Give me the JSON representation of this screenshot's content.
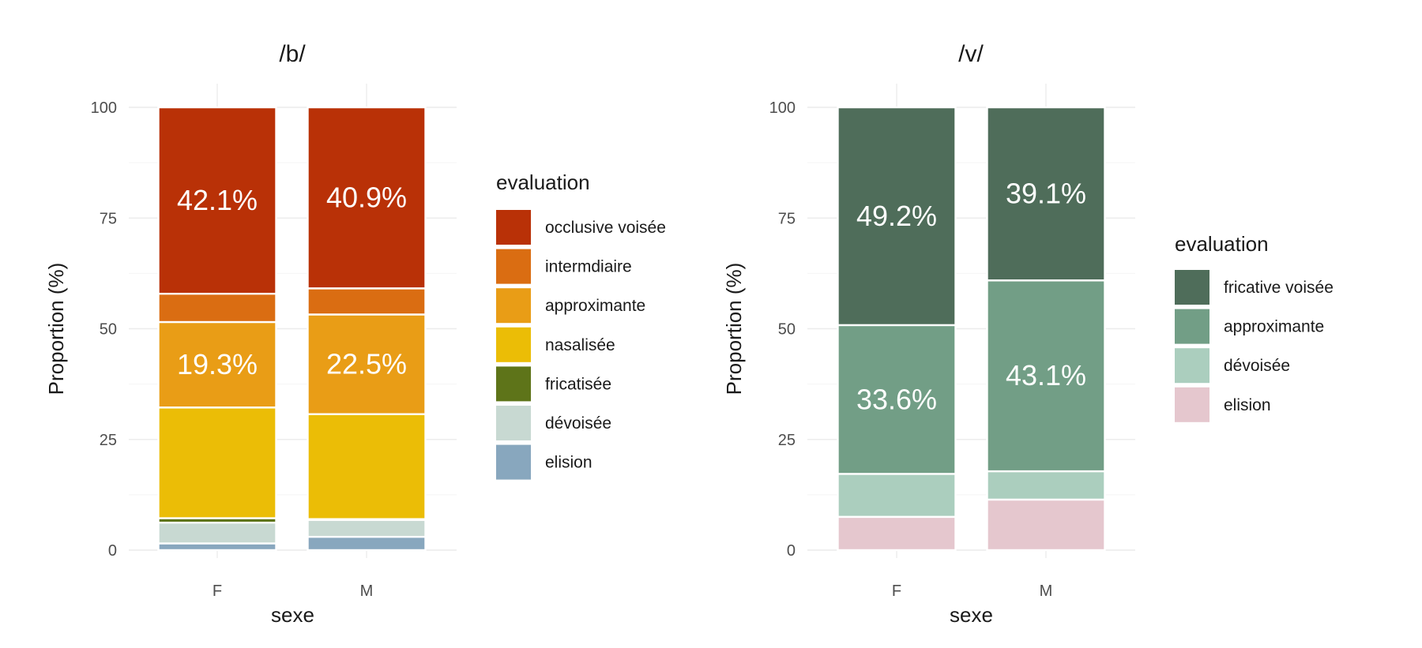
{
  "chart_data": [
    {
      "type": "bar",
      "stacked": true,
      "title": "/b/",
      "xlabel": "sexe",
      "ylabel": "Proportion (%)",
      "ylim": [
        0,
        100
      ],
      "yticks": [
        "0",
        "25",
        "50",
        "75",
        "100"
      ],
      "categories": [
        "F",
        "M"
      ],
      "legend_title": "evaluation",
      "legend_position": "right",
      "series": [
        {
          "name": "occlusive voisée",
          "color": "#B93107",
          "values": [
            42.1,
            40.9
          ]
        },
        {
          "name": "intermdiaire",
          "color": "#DA6D12",
          "values": [
            6.4,
            5.9
          ]
        },
        {
          "name": "approximante",
          "color": "#E99D16",
          "values": [
            19.3,
            22.5
          ]
        },
        {
          "name": "nasalisée",
          "color": "#EBBD06",
          "values": [
            25.0,
            23.7
          ]
        },
        {
          "name": "fricatisée",
          "color": "#5E7419",
          "values": [
            1.0,
            0.2
          ]
        },
        {
          "name": "dévoisée",
          "color": "#C8D9D2",
          "values": [
            4.7,
            3.8
          ]
        },
        {
          "name": "elision",
          "color": "#88A7BE",
          "values": [
            1.5,
            3.0
          ]
        }
      ],
      "data_labels": [
        {
          "series": "occlusive voisée",
          "text": [
            "42.1%",
            "40.9%"
          ]
        },
        {
          "series": "approximante",
          "text": [
            "19.3%",
            "22.5%"
          ]
        }
      ],
      "grid": true
    },
    {
      "type": "bar",
      "stacked": true,
      "title": "/v/",
      "xlabel": "sexe",
      "ylabel": "Proportion (%)",
      "ylim": [
        0,
        100
      ],
      "yticks": [
        "0",
        "25",
        "50",
        "75",
        "100"
      ],
      "categories": [
        "F",
        "M"
      ],
      "legend_title": "evaluation",
      "legend_position": "right",
      "series": [
        {
          "name": "fricative voisée",
          "color": "#4F6D5A",
          "values": [
            49.2,
            39.1
          ]
        },
        {
          "name": "approximante",
          "color": "#729E86",
          "values": [
            33.6,
            43.1
          ]
        },
        {
          "name": "dévoisée",
          "color": "#ABCEBE",
          "values": [
            9.7,
            6.4
          ]
        },
        {
          "name": "elision",
          "color": "#E5C7CE",
          "values": [
            7.5,
            11.4
          ]
        }
      ],
      "data_labels": [
        {
          "series": "fricative voisée",
          "text": [
            "49.2%",
            "39.1%"
          ]
        },
        {
          "series": "approximante",
          "text": [
            "33.6%",
            "43.1%"
          ]
        }
      ],
      "grid": true
    }
  ]
}
